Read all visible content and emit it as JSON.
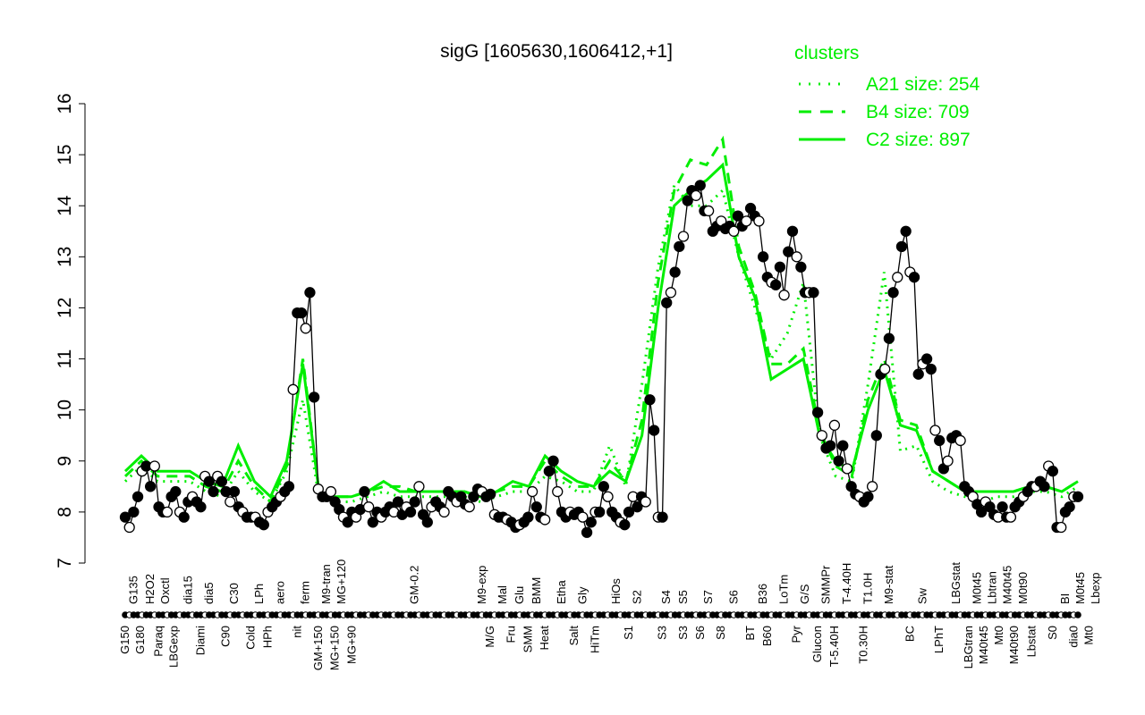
{
  "chart_data": {
    "type": "line",
    "title": "sigG [1605630,1606412,+1]",
    "xlabel": "",
    "ylabel": "",
    "ylim": [
      7,
      16
    ],
    "yticks": [
      7,
      8,
      9,
      10,
      11,
      12,
      13,
      14,
      15,
      16
    ],
    "grid": false,
    "legend": {
      "title": "clusters",
      "placement": "top-right",
      "color": "#00ee00",
      "entries": [
        {
          "label": "A21 size: 254",
          "style": "dotted"
        },
        {
          "label": "B4 size: 709",
          "style": "dashed"
        },
        {
          "label": "C2 size: 897",
          "style": "solid"
        }
      ]
    },
    "series_color": "#000000",
    "cluster_color": "#00ee00",
    "values": [
      7.9,
      7.7,
      8.0,
      8.3,
      8.8,
      8.9,
      8.5,
      8.9,
      8.1,
      8.0,
      8.0,
      8.3,
      8.4,
      8.0,
      7.9,
      8.2,
      8.3,
      8.2,
      8.1,
      8.7,
      8.6,
      8.4,
      8.7,
      8.6,
      8.4,
      8.2,
      8.4,
      8.1,
      8.0,
      7.9,
      7.9,
      7.9,
      7.8,
      7.75,
      8.0,
      8.1,
      8.2,
      8.3,
      8.4,
      8.5,
      10.4,
      11.9,
      11.9,
      11.6,
      12.3,
      10.25,
      8.45,
      8.3,
      8.3,
      8.4,
      8.2,
      8.05,
      7.9,
      7.8,
      8.0,
      7.9,
      8.05,
      8.4,
      8.1,
      7.8,
      8.0,
      7.9,
      8.0,
      8.1,
      8.0,
      8.2,
      7.95,
      8.1,
      8.0,
      8.2,
      8.5,
      7.95,
      7.8,
      8.1,
      8.2,
      8.1,
      8.0,
      8.4,
      8.3,
      8.2,
      8.3,
      8.15,
      8.1,
      8.3,
      8.45,
      8.4,
      8.3,
      8.35,
      7.95,
      7.9,
      7.9,
      7.85,
      7.8,
      7.7,
      7.75,
      7.8,
      7.9,
      8.4,
      8.1,
      7.9,
      7.85,
      8.8,
      9.0,
      8.4,
      8.0,
      7.9,
      8.0,
      7.95,
      8.0,
      7.9,
      7.6,
      7.8,
      8.0,
      8.0,
      8.5,
      8.3,
      8.0,
      7.9,
      7.8,
      7.75,
      8.0,
      8.3,
      8.1,
      8.3,
      8.2,
      10.2,
      9.6,
      7.9,
      7.9,
      12.1,
      12.3,
      12.7,
      13.2,
      13.4,
      14.1,
      14.3,
      14.2,
      14.4,
      13.9,
      13.9,
      13.5,
      13.6,
      13.7,
      13.55,
      13.6,
      13.5,
      13.8,
      13.6,
      13.7,
      13.95,
      13.8,
      13.7,
      13.0,
      12.6,
      12.5,
      12.45,
      12.8,
      12.25,
      13.1,
      13.5,
      13.0,
      12.8,
      12.3,
      12.3,
      12.3,
      9.95,
      9.5,
      9.25,
      9.3,
      9.7,
      9.0,
      9.3,
      8.85,
      8.5,
      8.35,
      8.3,
      8.2,
      8.3,
      8.5,
      9.5,
      10.7,
      10.8,
      11.4,
      12.3,
      12.6,
      13.2,
      13.5,
      12.7,
      12.6,
      10.7,
      10.9,
      11.0,
      10.8,
      9.6,
      9.4,
      8.85,
      9.0,
      9.45,
      9.5,
      9.4,
      8.5,
      8.4,
      8.3,
      8.15,
      8.0,
      8.2,
      8.1,
      7.95,
      7.9,
      8.1,
      7.9,
      7.9,
      8.1,
      8.2,
      8.3,
      8.4,
      8.5,
      8.5,
      8.6,
      8.5,
      8.9,
      8.8,
      7.7,
      7.7,
      8.0,
      8.1,
      8.3,
      8.3
    ],
    "clusters": {
      "A21": [
        8.6,
        8.9,
        8.6,
        8.6,
        8.6,
        8.4,
        8.3,
        8.8,
        8.4,
        8.2,
        8.8,
        10.2,
        8.3,
        8.2,
        8.2,
        8.3,
        8.4,
        8.3,
        8.3,
        8.3,
        8.3,
        8.3,
        8.2,
        8.3,
        8.4,
        8.4,
        8.7,
        8.6,
        8.4,
        8.4,
        9.3,
        8.5,
        10.5,
        12.8,
        14.4,
        14.0,
        14.0,
        14.3,
        13.0,
        12.0,
        11.0,
        11.5,
        12.5,
        9.5,
        8.7,
        8.6,
        10.5,
        12.7,
        9.2,
        9.3,
        8.6,
        8.4,
        8.3,
        8.2,
        8.3,
        8.3,
        8.4,
        8.4,
        8.3,
        8.5
      ],
      "B4": [
        8.7,
        9.0,
        8.7,
        8.7,
        8.7,
        8.5,
        8.4,
        9.0,
        8.5,
        8.2,
        8.9,
        11.0,
        8.4,
        8.3,
        8.3,
        8.4,
        8.5,
        8.5,
        8.4,
        8.4,
        8.4,
        8.4,
        8.3,
        8.4,
        8.5,
        8.5,
        9.0,
        8.7,
        8.5,
        8.5,
        9.0,
        8.6,
        9.8,
        12.5,
        14.3,
        14.9,
        14.8,
        15.3,
        13.2,
        12.3,
        10.9,
        10.9,
        11.2,
        9.6,
        8.9,
        8.7,
        10.2,
        11.0,
        9.8,
        9.7,
        8.8,
        8.6,
        8.4,
        8.4,
        8.4,
        8.4,
        8.5,
        8.5,
        8.4,
        8.6
      ],
      "C2": [
        8.8,
        9.1,
        8.8,
        8.8,
        8.8,
        8.6,
        8.5,
        9.3,
        8.6,
        8.3,
        9.0,
        10.9,
        8.4,
        8.3,
        8.3,
        8.4,
        8.6,
        8.4,
        8.4,
        8.4,
        8.4,
        8.4,
        8.3,
        8.4,
        8.6,
        8.5,
        9.1,
        8.8,
        8.6,
        8.5,
        8.8,
        8.6,
        9.5,
        12.0,
        14.0,
        14.3,
        14.5,
        14.8,
        13.0,
        12.2,
        10.6,
        10.8,
        11.0,
        9.5,
        9.0,
        8.8,
        10.0,
        10.8,
        9.7,
        9.6,
        8.8,
        8.6,
        8.4,
        8.4,
        8.4,
        8.4,
        8.5,
        8.5,
        8.4,
        8.6
      ]
    },
    "x_labels_bottom": [
      {
        "text": "G150",
        "index": 0
      },
      {
        "text": "G180",
        "index": 3
      },
      {
        "text": "Paraq",
        "index": 8
      },
      {
        "text": "LBGexp",
        "index": 11
      },
      {
        "text": "Diami",
        "index": 18
      },
      {
        "text": "C90",
        "index": 24
      },
      {
        "text": "Cold",
        "index": 30
      },
      {
        "text": "HPh",
        "index": 34
      },
      {
        "text": "nit",
        "index": 41
      },
      {
        "text": "GM+150",
        "index": 46
      },
      {
        "text": "MG+150",
        "index": 50
      },
      {
        "text": "MG+90",
        "index": 54
      },
      {
        "text": "M/G",
        "index": 87
      },
      {
        "text": "Fru",
        "index": 92
      },
      {
        "text": "SMM",
        "index": 96
      },
      {
        "text": "Heat",
        "index": 100
      },
      {
        "text": "Salt",
        "index": 107
      },
      {
        "text": "HiTm",
        "index": 112
      },
      {
        "text": "S1",
        "index": 120
      },
      {
        "text": "S3",
        "index": 128
      },
      {
        "text": "S3",
        "index": 133
      },
      {
        "text": "S6",
        "index": 137
      },
      {
        "text": "S8",
        "index": 142
      },
      {
        "text": "BT",
        "index": 149
      },
      {
        "text": "B60",
        "index": 153
      },
      {
        "text": "Pyr",
        "index": 160
      },
      {
        "text": "Glucon",
        "index": 165
      },
      {
        "text": "T-5.40H",
        "index": 169
      },
      {
        "text": "T0.30H",
        "index": 176
      },
      {
        "text": "BC",
        "index": 187
      },
      {
        "text": "LPhT",
        "index": 194
      },
      {
        "text": "LBGtran",
        "index": 201
      },
      {
        "text": "M40t45",
        "index": 204
      },
      {
        "text": "Mt0",
        "index": 208
      },
      {
        "text": "M40t90",
        "index": 211
      },
      {
        "text": "Lbstat",
        "index": 216
      },
      {
        "text": "S0",
        "index": 221
      },
      {
        "text": "dia0",
        "index": 226
      },
      {
        "text": "Mt0",
        "index": 229
      }
    ],
    "x_labels_top": [
      {
        "text": "G135",
        "index": 2
      },
      {
        "text": "H2O2",
        "index": 6
      },
      {
        "text": "Oxctl",
        "index": 9
      },
      {
        "text": "dia15",
        "index": 15
      },
      {
        "text": "dia5",
        "index": 20
      },
      {
        "text": "C30",
        "index": 26
      },
      {
        "text": "LPh",
        "index": 32
      },
      {
        "text": "aero",
        "index": 37
      },
      {
        "text": "ferm",
        "index": 43
      },
      {
        "text": "M9-tran",
        "index": 48
      },
      {
        "text": "MG+120",
        "index": 51
      },
      {
        "text": "GM-0.2",
        "index": 69
      },
      {
        "text": "M9-exp",
        "index": 85
      },
      {
        "text": "Mal",
        "index": 90
      },
      {
        "text": "Glu",
        "index": 94
      },
      {
        "text": "BMM",
        "index": 98
      },
      {
        "text": "Etha",
        "index": 104
      },
      {
        "text": "Gly",
        "index": 109
      },
      {
        "text": "HiOs",
        "index": 117
      },
      {
        "text": "S2",
        "index": 122
      },
      {
        "text": "S4",
        "index": 129
      },
      {
        "text": "S5",
        "index": 133
      },
      {
        "text": "S7",
        "index": 139
      },
      {
        "text": "S6",
        "index": 145
      },
      {
        "text": "B36",
        "index": 152
      },
      {
        "text": "LoTm",
        "index": 157
      },
      {
        "text": "G/S",
        "index": 162
      },
      {
        "text": "SMMPr",
        "index": 167
      },
      {
        "text": "T-4.40H",
        "index": 172
      },
      {
        "text": "T1.0H",
        "index": 177
      },
      {
        "text": "M9-stat",
        "index": 182
      },
      {
        "text": "Sw",
        "index": 190
      },
      {
        "text": "LBGstat",
        "index": 198
      },
      {
        "text": "M0t45",
        "index": 203
      },
      {
        "text": "Lbtran",
        "index": 206
      },
      {
        "text": "M40t45",
        "index": 209
      },
      {
        "text": "M0t90",
        "index": 214
      },
      {
        "text": "BI",
        "index": 224
      },
      {
        "text": "M0t45",
        "index": 227
      },
      {
        "text": "Lbexp",
        "index": 229
      }
    ]
  }
}
